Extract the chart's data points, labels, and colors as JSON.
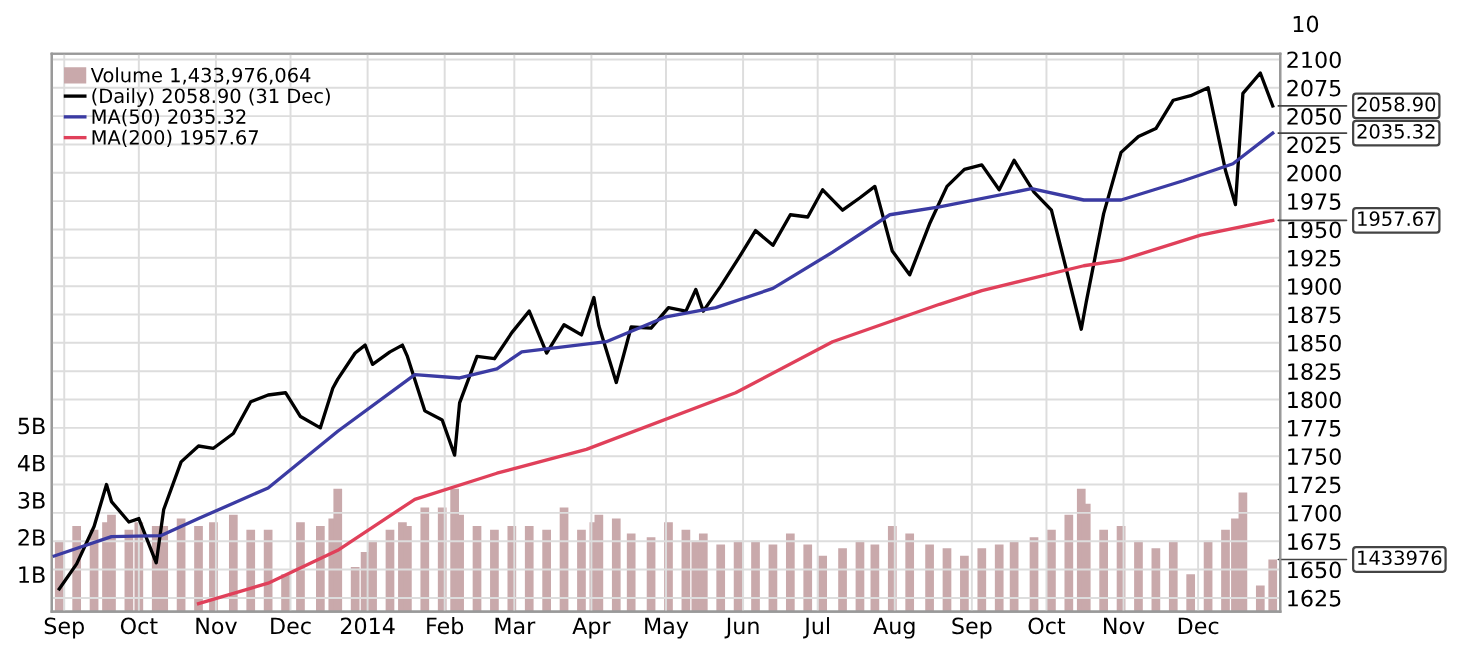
{
  "chart_data": {
    "type": "line",
    "grid": true,
    "legend": "top left",
    "xlim": [
      "2013-08-27",
      "2015-01-03"
    ],
    "xticks": [
      {
        "value": "2013-09-01",
        "label": "Sep"
      },
      {
        "value": "2013-10-01",
        "label": "Oct"
      },
      {
        "value": "2013-11-01",
        "label": "Nov"
      },
      {
        "value": "2013-12-01",
        "label": "Dec"
      },
      {
        "value": "2014-01-01",
        "label": "2014"
      },
      {
        "value": "2014-02-01",
        "label": "Feb"
      },
      {
        "value": "2014-03-01",
        "label": "Mar"
      },
      {
        "value": "2014-04-01",
        "label": "Apr"
      },
      {
        "value": "2014-05-01",
        "label": "May"
      },
      {
        "value": "2014-06-01",
        "label": "Jun"
      },
      {
        "value": "2014-07-01",
        "label": "Jul"
      },
      {
        "value": "2014-08-01",
        "label": "Aug"
      },
      {
        "value": "2014-09-01",
        "label": "Sep"
      },
      {
        "value": "2014-10-01",
        "label": "Oct"
      },
      {
        "value": "2014-11-01",
        "label": "Nov"
      },
      {
        "value": "2014-12-01",
        "label": "Dec"
      }
    ],
    "ylim": [
      1613,
      2105
    ],
    "yticks": [
      1625,
      1650,
      1675,
      1700,
      1725,
      1750,
      1775,
      1800,
      1825,
      1850,
      1875,
      1900,
      1925,
      1950,
      1975,
      2000,
      2025,
      2050,
      2075,
      2100
    ],
    "y2lim": [
      0,
      15
    ],
    "y2ticks": [
      {
        "value": 1,
        "label": "1B"
      },
      {
        "value": 2,
        "label": "2B"
      },
      {
        "value": 3,
        "label": "3B"
      },
      {
        "value": 4,
        "label": "4B"
      },
      {
        "value": 5,
        "label": "5B"
      }
    ],
    "series": [
      {
        "name": "Volume 1,433,976,064",
        "type": "bar",
        "axis": "y2",
        "color": "#c9a9ab",
        "x": [
          "2013-08-30",
          "2013-09-06",
          "2013-09-13",
          "2013-09-18",
          "2013-09-20",
          "2013-09-27",
          "2013-10-01",
          "2013-10-08",
          "2013-10-11",
          "2013-10-18",
          "2013-10-25",
          "2013-10-31",
          "2013-11-08",
          "2013-11-15",
          "2013-11-22",
          "2013-11-29",
          "2013-12-05",
          "2013-12-13",
          "2013-12-18",
          "2013-12-20",
          "2013-12-27",
          "2013-12-31",
          "2014-01-03",
          "2014-01-10",
          "2014-01-15",
          "2014-01-17",
          "2014-01-24",
          "2014-01-31",
          "2014-02-05",
          "2014-02-07",
          "2014-02-14",
          "2014-02-21",
          "2014-02-28",
          "2014-03-07",
          "2014-03-14",
          "2014-03-21",
          "2014-03-28",
          "2014-04-02",
          "2014-04-04",
          "2014-04-11",
          "2014-04-17",
          "2014-04-25",
          "2014-05-02",
          "2014-05-09",
          "2014-05-13",
          "2014-05-16",
          "2014-05-23",
          "2014-05-30",
          "2014-06-06",
          "2014-06-13",
          "2014-06-20",
          "2014-06-27",
          "2014-07-03",
          "2014-07-11",
          "2014-07-18",
          "2014-07-24",
          "2014-07-31",
          "2014-08-07",
          "2014-08-15",
          "2014-08-22",
          "2014-08-29",
          "2014-09-05",
          "2014-09-12",
          "2014-09-18",
          "2014-09-26",
          "2014-10-03",
          "2014-10-10",
          "2014-10-15",
          "2014-10-17",
          "2014-10-24",
          "2014-10-31",
          "2014-11-07",
          "2014-11-14",
          "2014-11-21",
          "2014-11-28",
          "2014-12-05",
          "2014-12-12",
          "2014-12-16",
          "2014-12-19",
          "2014-12-26",
          "2014-12-31"
        ],
        "values": [
          1.9,
          2.3,
          2.2,
          2.4,
          2.6,
          2.2,
          2.4,
          2.3,
          2.3,
          2.5,
          2.3,
          2.4,
          2.6,
          2.2,
          2.2,
          1.0,
          2.4,
          2.3,
          2.5,
          3.3,
          1.2,
          1.6,
          1.9,
          2.2,
          2.4,
          2.3,
          2.8,
          2.8,
          3.3,
          2.6,
          2.3,
          2.2,
          2.3,
          2.3,
          2.2,
          2.8,
          2.2,
          2.4,
          2.6,
          2.5,
          2.1,
          2.0,
          2.4,
          2.2,
          1.9,
          2.1,
          1.8,
          1.9,
          1.9,
          1.8,
          2.1,
          1.8,
          1.5,
          1.7,
          1.9,
          1.8,
          2.3,
          2.1,
          1.8,
          1.7,
          1.5,
          1.7,
          1.8,
          1.9,
          2.0,
          2.2,
          2.6,
          3.3,
          2.9,
          2.2,
          2.3,
          1.9,
          1.7,
          1.9,
          1.0,
          1.9,
          2.2,
          2.5,
          3.2,
          0.7,
          1.4
        ]
      },
      {
        "name": "(Daily) 2058.90 (31 Dec)",
        "color": "#000000",
        "x": [
          "2013-08-30",
          "2013-09-06",
          "2013-09-13",
          "2013-09-18",
          "2013-09-20",
          "2013-09-27",
          "2013-10-01",
          "2013-10-08",
          "2013-10-11",
          "2013-10-18",
          "2013-10-25",
          "2013-10-31",
          "2013-11-08",
          "2013-11-15",
          "2013-11-22",
          "2013-11-29",
          "2013-12-05",
          "2013-12-13",
          "2013-12-18",
          "2013-12-20",
          "2013-12-27",
          "2013-12-31",
          "2014-01-03",
          "2014-01-10",
          "2014-01-15",
          "2014-01-17",
          "2014-01-24",
          "2014-01-31",
          "2014-02-05",
          "2014-02-07",
          "2014-02-14",
          "2014-02-21",
          "2014-02-28",
          "2014-03-07",
          "2014-03-14",
          "2014-03-21",
          "2014-03-28",
          "2014-04-02",
          "2014-04-04",
          "2014-04-11",
          "2014-04-17",
          "2014-04-25",
          "2014-05-02",
          "2014-05-09",
          "2014-05-13",
          "2014-05-16",
          "2014-05-23",
          "2014-05-30",
          "2014-06-06",
          "2014-06-13",
          "2014-06-20",
          "2014-06-27",
          "2014-07-03",
          "2014-07-11",
          "2014-07-18",
          "2014-07-24",
          "2014-07-31",
          "2014-08-07",
          "2014-08-15",
          "2014-08-22",
          "2014-08-29",
          "2014-09-05",
          "2014-09-12",
          "2014-09-18",
          "2014-09-26",
          "2014-10-03",
          "2014-10-10",
          "2014-10-15",
          "2014-10-17",
          "2014-10-24",
          "2014-10-31",
          "2014-11-07",
          "2014-11-14",
          "2014-11-21",
          "2014-11-28",
          "2014-12-05",
          "2014-12-12",
          "2014-12-16",
          "2014-12-19",
          "2014-12-26",
          "2014-12-31"
        ],
        "values": [
          1633,
          1655,
          1688,
          1725,
          1710,
          1692,
          1695,
          1656,
          1703,
          1745,
          1759,
          1757,
          1770,
          1798,
          1804,
          1806,
          1785,
          1775,
          1810,
          1818,
          1841,
          1848,
          1831,
          1842,
          1848,
          1838,
          1790,
          1782,
          1751,
          1797,
          1838,
          1836,
          1859,
          1878,
          1841,
          1866,
          1857,
          1890,
          1865,
          1815,
          1864,
          1863,
          1881,
          1878,
          1897,
          1878,
          1900,
          1924,
          1949,
          1936,
          1963,
          1961,
          1985,
          1967,
          1978,
          1988,
          1931,
          1910,
          1955,
          1988,
          2003,
          2007,
          1985,
          2011,
          1983,
          1967,
          1906,
          1862,
          1886,
          1964,
          2018,
          2032,
          2039,
          2064,
          2068,
          2075,
          2002,
          1972,
          2070,
          2088,
          2059
        ]
      },
      {
        "name": "MA(50) 2035.32",
        "color": "#3b3ba3",
        "x": [
          "2013-08-28",
          "2013-09-20",
          "2013-10-10",
          "2013-10-25",
          "2013-11-22",
          "2013-12-20",
          "2014-01-20",
          "2014-02-07",
          "2014-02-22",
          "2014-03-04",
          "2014-04-07",
          "2014-05-01",
          "2014-05-21",
          "2014-06-13",
          "2014-07-07",
          "2014-07-30",
          "2014-08-19",
          "2014-09-25",
          "2014-10-16",
          "2014-10-31",
          "2014-11-25",
          "2014-12-15",
          "2014-12-31"
        ],
        "values": [
          1662,
          1679,
          1680,
          1695,
          1722,
          1772,
          1822,
          1819,
          1827,
          1842,
          1851,
          1873,
          1881,
          1898,
          1930,
          1963,
          1970,
          1986,
          1976,
          1976,
          1993,
          2008,
          2035
        ]
      },
      {
        "name": "MA(200) 1957.67",
        "color": "#e0405a",
        "x": [
          "2013-10-25",
          "2013-11-22",
          "2013-12-20",
          "2014-01-20",
          "2014-02-22",
          "2014-03-30",
          "2014-05-29",
          "2014-07-07",
          "2014-08-19",
          "2014-09-05",
          "2014-10-16",
          "2014-10-31",
          "2014-12-02",
          "2014-12-31"
        ],
        "values": [
          1620,
          1638,
          1667,
          1712,
          1735,
          1756,
          1806,
          1851,
          1884,
          1896,
          1918,
          1923,
          1945,
          1958
        ]
      }
    ],
    "annotations": [
      "10",
      "1433976",
      {
        "text": "2058.90",
        "x": "2014-12-31",
        "y": 2059
      },
      {
        "text": "2035.32",
        "x": "2014-12-31",
        "y": 2035
      },
      {
        "text": "1957.67",
        "x": "2014-12-31",
        "y": 1958
      }
    ]
  }
}
